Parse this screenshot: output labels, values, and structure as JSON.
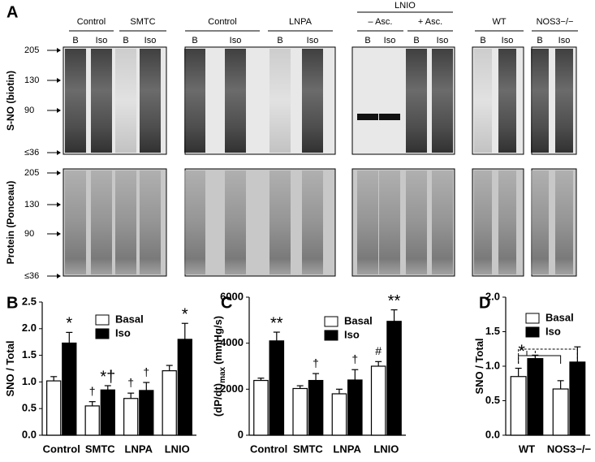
{
  "panel_labels": [
    "A",
    "B",
    "C",
    "D"
  ],
  "blots": {
    "ylabels": [
      "S-NO (biotin)",
      "Protein (Ponceau)"
    ],
    "markers": [
      "205",
      "130",
      "90",
      "≤36"
    ],
    "super_group": "LNIO",
    "groups": [
      {
        "label": "Control",
        "lanes": [
          "B",
          "Iso"
        ]
      },
      {
        "label": "SMTC",
        "lanes": [
          "B",
          "Iso"
        ]
      },
      {
        "label": "Control",
        "lanes": [
          "B",
          "Iso"
        ]
      },
      {
        "label": "LNPA",
        "lanes": [
          "B",
          "Iso"
        ]
      },
      {
        "label": "– Asc.",
        "lanes": [
          "B",
          "Iso"
        ]
      },
      {
        "label": "+ Asc.",
        "lanes": [
          "B",
          "Iso"
        ]
      },
      {
        "label": "WT",
        "lanes": [
          "B",
          "Iso"
        ]
      },
      {
        "label": "NOS3−/−",
        "lanes": [
          "B",
          "Iso"
        ]
      }
    ]
  },
  "chart_data": [
    {
      "type": "bar",
      "ylabel": "SNO / Total",
      "categories": [
        "Control",
        "SMTC",
        "LNPA",
        "LNIO"
      ],
      "series": [
        {
          "name": "Basal",
          "color": "#ffffff",
          "values": [
            1.02,
            0.55,
            0.69,
            1.21
          ],
          "errors": [
            0.08,
            0.08,
            0.1,
            0.1
          ],
          "annotations": [
            null,
            "†",
            "†",
            null
          ]
        },
        {
          "name": "Iso",
          "color": "#000000",
          "values": [
            1.73,
            0.85,
            0.84,
            1.8
          ],
          "errors": [
            0.2,
            0.08,
            0.15,
            0.3
          ],
          "annotations": [
            "*",
            "*†",
            "†",
            "*"
          ]
        }
      ],
      "ylim": [
        0,
        2.5
      ],
      "yticks": [
        {
          "value": 0,
          "label": "0.0"
        },
        0.5,
        {
          "value": 1,
          "label": "1.0"
        },
        1.5,
        {
          "value": 2,
          "label": "2.0"
        },
        2.5
      ]
    },
    {
      "type": "bar",
      "ylabel": "(dP/dt)",
      "ylabel_subscript": "max",
      "ylabel_unit": "(mmHg/s)",
      "categories": [
        "Control",
        "SMTC",
        "LNPA",
        "LNIO"
      ],
      "series": [
        {
          "name": "Basal",
          "color": "#ffffff",
          "values": [
            2380,
            2030,
            1800,
            3000
          ],
          "errors": [
            100,
            120,
            200,
            200
          ],
          "annotations": [
            null,
            null,
            null,
            "#"
          ]
        },
        {
          "name": "Iso",
          "color": "#000000",
          "values": [
            4100,
            2380,
            2400,
            4950
          ],
          "errors": [
            380,
            300,
            450,
            500
          ],
          "annotations": [
            "**",
            "†",
            "†",
            "**"
          ]
        }
      ],
      "ylim": [
        0,
        6000
      ],
      "yticks": [
        0,
        2000,
        4000,
        6000
      ]
    },
    {
      "type": "bar",
      "ylabel": "SNO / Total",
      "categories": [
        "WT",
        "NOS3−/−"
      ],
      "series": [
        {
          "name": "Basal",
          "color": "#ffffff",
          "values": [
            0.85,
            0.67
          ],
          "errors": [
            0.12,
            0.12
          ]
        },
        {
          "name": "Iso",
          "color": "#000000",
          "values": [
            1.11,
            1.06
          ],
          "errors": [
            0.05,
            0.22
          ]
        }
      ],
      "annotation": "*",
      "ylim": [
        0,
        2
      ],
      "yticks": [
        {
          "value": 0,
          "label": "0.0"
        },
        0.5,
        {
          "value": 1,
          "label": "1.0"
        },
        1.5,
        {
          "value": 2,
          "label": "2.0"
        }
      ]
    }
  ]
}
